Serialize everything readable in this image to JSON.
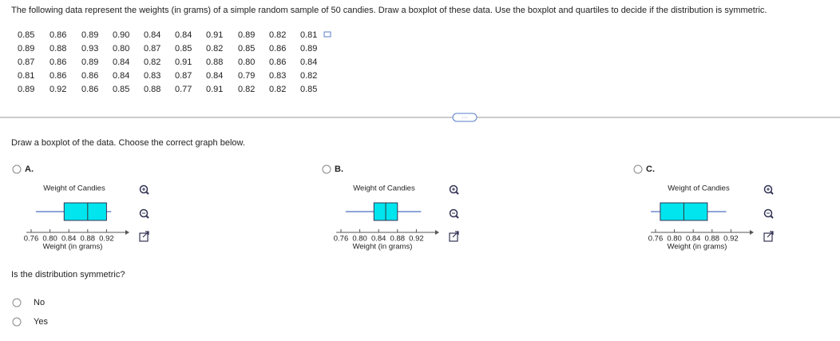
{
  "question": "The following data represent the weights (in grams) of a simple random sample of 50 candies. Draw a boxplot of these data. Use the boxplot and quartiles to decide if the distribution is symmetric.",
  "data_table": {
    "rows": [
      [
        "0.85",
        "0.86",
        "0.89",
        "0.90",
        "0.84",
        "0.84",
        "0.91",
        "0.89",
        "0.82",
        "0.81"
      ],
      [
        "0.89",
        "0.88",
        "0.93",
        "0.80",
        "0.87",
        "0.85",
        "0.82",
        "0.85",
        "0.86",
        "0.89"
      ],
      [
        "0.87",
        "0.86",
        "0.89",
        "0.84",
        "0.82",
        "0.91",
        "0.88",
        "0.80",
        "0.86",
        "0.84"
      ],
      [
        "0.81",
        "0.86",
        "0.86",
        "0.84",
        "0.83",
        "0.87",
        "0.84",
        "0.79",
        "0.83",
        "0.82"
      ],
      [
        "0.89",
        "0.92",
        "0.86",
        "0.85",
        "0.88",
        "0.77",
        "0.91",
        "0.82",
        "0.82",
        "0.85"
      ]
    ]
  },
  "prompt": "Draw a boxplot of the data. Choose the correct graph below.",
  "options": [
    {
      "letter": "A.",
      "chart": {
        "type": "boxplot",
        "title": "Weight of Candies",
        "x_label": "Weight (in grams)",
        "color": "#00e5ee",
        "min": 0.77,
        "q1": 0.83,
        "median": 0.88,
        "q3": 0.92,
        "max": 0.93,
        "xlim": [
          0.75,
          0.96
        ],
        "xticks": [
          0.76,
          {
            "value": 0.8,
            "label": "0.80"
          },
          0.84,
          0.88,
          0.92
        ]
      }
    },
    {
      "letter": "B.",
      "chart": {
        "type": "boxplot",
        "title": "Weight of Candies",
        "x_label": "Weight (in grams)",
        "color": "#00e5ee",
        "min": 0.77,
        "q1": 0.83,
        "median": 0.855,
        "q3": 0.88,
        "max": 0.93,
        "xlim": [
          0.75,
          0.96
        ],
        "xticks": [
          0.76,
          {
            "value": 0.8,
            "label": "0.80"
          },
          0.84,
          0.88,
          0.92
        ]
      }
    },
    {
      "letter": "C.",
      "chart": {
        "type": "boxplot",
        "title": "Weight of Candies",
        "x_label": "Weight (in grams)",
        "color": "#00e5ee",
        "min": 0.75,
        "q1": 0.77,
        "median": 0.82,
        "q3": 0.87,
        "max": 0.91,
        "xlim": [
          0.75,
          0.96
        ],
        "xticks": [
          0.76,
          {
            "value": 0.8,
            "label": "0.80"
          },
          0.84,
          0.88,
          0.92
        ]
      }
    }
  ],
  "symmetric_question": "Is the distribution symmetric?",
  "symmetric_choices": [
    "No",
    "Yes"
  ]
}
